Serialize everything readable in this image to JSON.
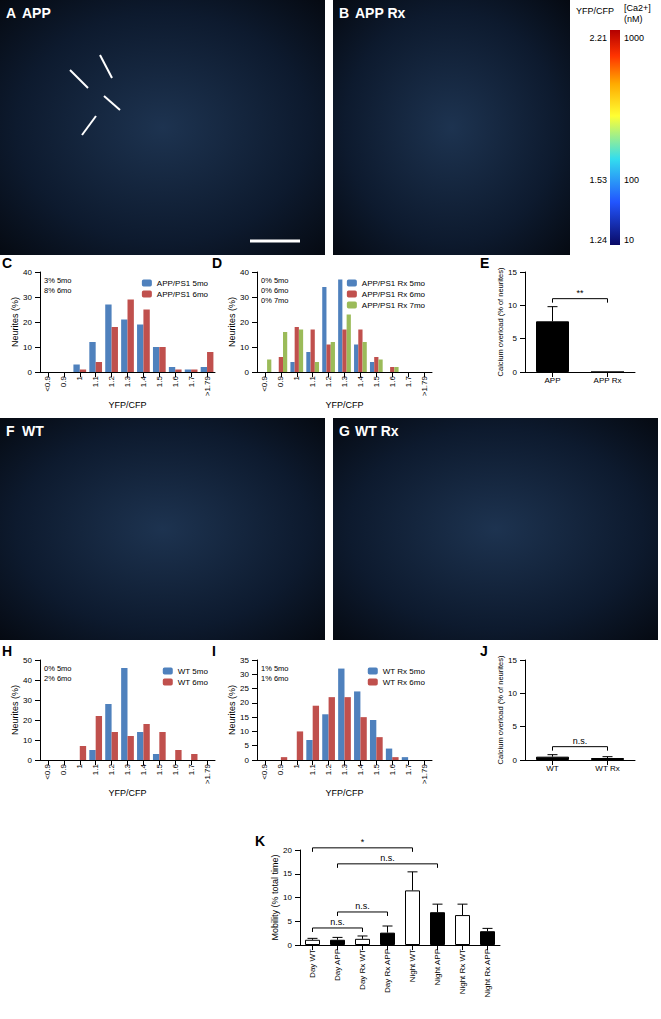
{
  "images": [
    {
      "panel": "A",
      "label": "APP"
    },
    {
      "panel": "B",
      "label": "APP Rx"
    },
    {
      "panel": "F",
      "label": "WT"
    },
    {
      "panel": "G",
      "label": "WT Rx"
    }
  ],
  "colorbar": {
    "title": "YFP/CFP",
    "title2": "[Ca2+] (nM)",
    "ticks": [
      {
        "ratio": 2.21,
        "ca": 1000
      },
      {
        "ratio": 1.53,
        "ca": 100
      },
      {
        "ratio": 1.24,
        "ca": 10
      }
    ]
  },
  "chart_data": [
    {
      "panel": "C",
      "type": "bar",
      "categories": [
        "<0.9",
        "0.9",
        "1",
        "1.1",
        "1.2",
        "1.3",
        "1.4",
        "1.5",
        "1.6",
        "1.7",
        ">1.79"
      ],
      "series": [
        {
          "name": "APP/PS1 5mo",
          "color": "#4f81bd",
          "values": [
            0,
            0,
            3,
            12,
            27,
            21,
            19,
            10,
            2,
            1,
            2
          ]
        },
        {
          "name": "APP/PS1 6mo",
          "color": "#c0504d",
          "values": [
            0,
            0,
            1,
            4,
            18,
            29,
            25,
            10,
            1,
            1,
            8
          ]
        }
      ],
      "x_label": "YFP/CFP",
      "y_label": "Neurites (%)",
      "ylim": [
        0,
        40
      ],
      "yticks": [
        0,
        10,
        20,
        30,
        40
      ],
      "annotations": [
        "3% 5mo",
        "8% 6mo"
      ],
      "legend": "upper right",
      "grid": false
    },
    {
      "panel": "D",
      "type": "bar",
      "categories": [
        "<0.9",
        "0.9",
        "1",
        "1.1",
        "1.2",
        "1.3",
        "1.4",
        "1.5",
        "1.6",
        "1.7",
        ">1.79"
      ],
      "series": [
        {
          "name": "APP/PS1 Rx 5mo",
          "color": "#4f81bd",
          "values": [
            0,
            0,
            4,
            8,
            34,
            37,
            11,
            4,
            0,
            0,
            0
          ]
        },
        {
          "name": "APP/PS1 Rx 6mo",
          "color": "#c0504d",
          "values": [
            0,
            6,
            18,
            17,
            11,
            17,
            17,
            6,
            2,
            0,
            0
          ]
        },
        {
          "name": "APP/PS1 Rx 7mo",
          "color": "#9bbb59",
          "values": [
            5,
            16,
            17,
            4,
            12,
            23,
            12,
            5,
            2,
            0,
            0
          ]
        }
      ],
      "x_label": "YFP/CFP",
      "y_label": "Neurites (%)",
      "ylim": [
        0,
        40
      ],
      "yticks": [
        0,
        10,
        20,
        30,
        40
      ],
      "annotations": [
        "0% 5mo",
        "0% 6mo",
        "0% 7mo"
      ],
      "legend": "upper right",
      "grid": false
    },
    {
      "panel": "E",
      "type": "bar",
      "categories": [
        "APP",
        "APP Rx"
      ],
      "values": [
        7.6,
        0
      ],
      "errors": [
        2.2,
        0
      ],
      "color": "#000000",
      "y_label": "Calcium overload (% of neurites)",
      "ylim": [
        0,
        15
      ],
      "yticks": [
        0,
        5,
        10,
        15
      ],
      "comparisons": [
        {
          "from": "APP",
          "to": "APP Rx",
          "label": "**"
        }
      ],
      "grid": false
    },
    {
      "panel": "H",
      "type": "bar",
      "categories": [
        "<0.9",
        "0.9",
        "1",
        "1.1",
        "1.2",
        "1.3",
        "1.4",
        "1.5",
        "1.6",
        "1.7",
        ">1.79"
      ],
      "series": [
        {
          "name": "WT 5mo",
          "color": "#4f81bd",
          "values": [
            0,
            0,
            0,
            5,
            28,
            46,
            14,
            3,
            0,
            0,
            0
          ]
        },
        {
          "name": "WT 6mo",
          "color": "#c0504d",
          "values": [
            0,
            0,
            7,
            22,
            14,
            12,
            18,
            14,
            5,
            3,
            0
          ]
        }
      ],
      "x_label": "YFP/CFP",
      "y_label": "Neurites (%)",
      "ylim": [
        0,
        50
      ],
      "yticks": [
        0,
        10,
        20,
        30,
        40,
        50
      ],
      "annotations": [
        "0% 5mo",
        "2% 6mo"
      ],
      "legend": "upper right",
      "grid": false
    },
    {
      "panel": "I",
      "type": "bar",
      "categories": [
        "<0.9",
        "0.9",
        "1",
        "1.1",
        "1.2",
        "1.3",
        "1.4",
        "1.5",
        "1.6",
        "1.7",
        ">1.79"
      ],
      "series": [
        {
          "name": "WT Rx 5mo",
          "color": "#4f81bd",
          "values": [
            0,
            0,
            0,
            7,
            16,
            32,
            24,
            14,
            4,
            1,
            0
          ]
        },
        {
          "name": "WT Rx 6mo",
          "color": "#c0504d",
          "values": [
            0,
            1,
            10,
            19,
            22,
            22,
            15,
            8,
            1,
            0,
            0
          ]
        }
      ],
      "x_label": "YFP/CFP",
      "y_label": "Neurites (%)",
      "ylim": [
        0,
        35
      ],
      "yticks": [
        0,
        5,
        10,
        15,
        20,
        25,
        30,
        35
      ],
      "annotations": [
        "1% 5mo",
        "1% 6mo"
      ],
      "legend": "upper right",
      "grid": false
    },
    {
      "panel": "J",
      "type": "bar",
      "categories": [
        "WT",
        "WT Rx"
      ],
      "values": [
        0.5,
        0.3
      ],
      "errors": [
        0.3,
        0.2
      ],
      "color": "#000000",
      "y_label": "Calcium overload (% of neurites)",
      "ylim": [
        0,
        15
      ],
      "yticks": [
        0,
        5,
        10,
        15
      ],
      "comparisons": [
        {
          "from": "WT",
          "to": "WT Rx",
          "label": "n.s."
        }
      ],
      "grid": false
    },
    {
      "panel": "K",
      "type": "bar",
      "categories": [
        "Day WT",
        "Day APP",
        "Day Rx WT",
        "Day Rx APP",
        "Night WT",
        "Night APP",
        "Night Rx WT",
        "Night Rx APP"
      ],
      "values": [
        1.1,
        1.1,
        1.3,
        2.6,
        11.5,
        6.9,
        6.3,
        2.9
      ],
      "errors": [
        0.3,
        0.5,
        0.6,
        1.4,
        3.9,
        1.7,
        2.3,
        0.6
      ],
      "colors": [
        "#ffffff",
        "#000000",
        "#ffffff",
        "#000000",
        "#ffffff",
        "#000000",
        "#ffffff",
        "#000000"
      ],
      "y_label": "Mobility (% total time)",
      "ylim": [
        0,
        20
      ],
      "yticks": [
        0,
        5,
        10,
        15,
        20
      ],
      "comparisons": [
        {
          "from": "Day WT",
          "to": "Day Rx WT",
          "label": "n.s."
        },
        {
          "from": "Day APP",
          "to": "Day Rx APP",
          "label": "n.s."
        },
        {
          "from": "Day APP",
          "to": "Night APP",
          "label": "n.s."
        },
        {
          "from": "Day WT",
          "to": "Night WT",
          "label": "*"
        }
      ],
      "grid": false
    }
  ]
}
